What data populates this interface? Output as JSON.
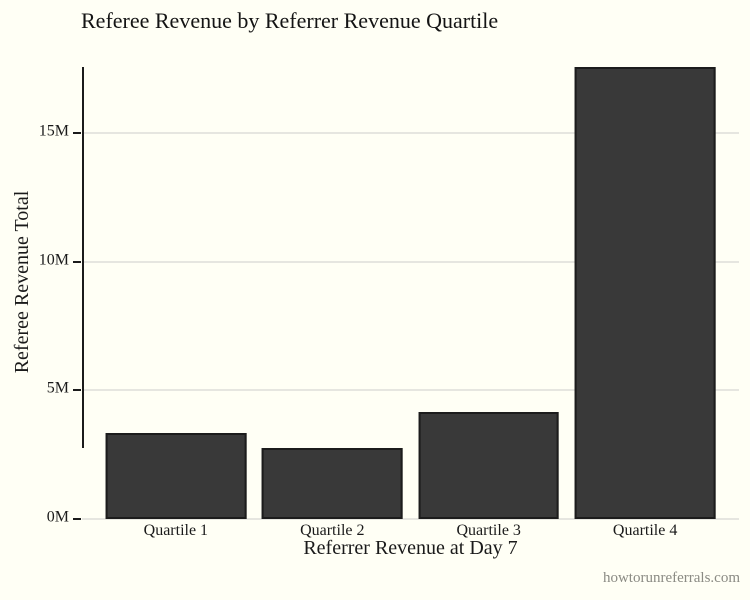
{
  "watermark": "howtorunreferrals.com",
  "chart_data": {
    "type": "bar",
    "title": "Referee Revenue by Referrer Revenue Quartile",
    "xlabel": "Referrer Revenue at Day 7",
    "ylabel": "Referee Revenue Total",
    "categories": [
      "Quartile 1",
      "Quartile 2",
      "Quartile 3",
      "Quartile 4"
    ],
    "values_millions": [
      3.33,
      2.78,
      4.18,
      17.57
    ],
    "yticks": [
      {
        "value": 0,
        "label": "0M"
      },
      {
        "value": 5,
        "label": "5M"
      },
      {
        "value": 10,
        "label": "10M"
      },
      {
        "value": 15,
        "label": "15M"
      }
    ],
    "ylim": [
      0,
      18.43
    ],
    "grid": "horizontal-only",
    "legend": false,
    "axis_style": "tufte-rangeframe",
    "colors": {
      "background": "#FFFFF5",
      "bar_fill": "#393939",
      "bar_border": "#1C1C1C",
      "gridline": "#E6E6E0",
      "axis_line": "#1B1B1B",
      "text": "#1A1A1A",
      "watermark": "#8B8B84"
    }
  }
}
